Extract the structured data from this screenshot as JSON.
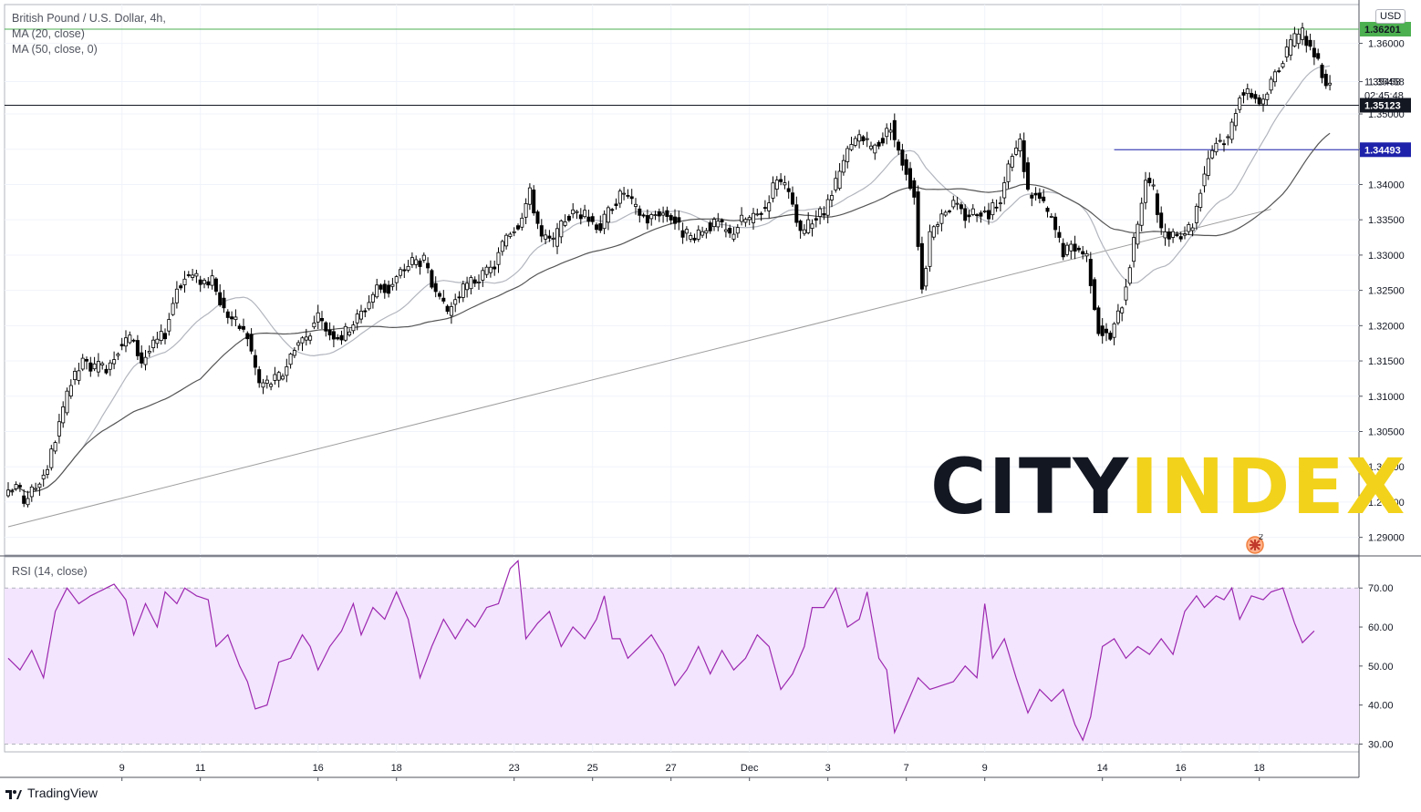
{
  "header": {
    "symbol_title": "British Pound / U.S. Dollar, 4h,",
    "ma20_label": "MA (20, close)",
    "ma50_label": "MA (50, close, 0)",
    "rsi_label": "RSI (14, close)",
    "currency": "USD"
  },
  "watermark": {
    "part1": "CITY",
    "part2": "INDEX",
    "color1": "#131722",
    "color2": "#f2d21b",
    "flag_count": "2"
  },
  "footer": {
    "brand": "TradingView"
  },
  "colors": {
    "up_candle": "#ffffff",
    "down_candle": "#000000",
    "ma20": "#b2b5be",
    "ma50": "#555555",
    "trendline": "#9e9e9e",
    "resistance": "#4caf50",
    "current_line": "#131722",
    "support_line": "#1e22aa",
    "rsi_line": "#9c27b0",
    "rsi_band": "#f3e5fd"
  },
  "chart_data": {
    "type": "candlestick",
    "ylim": [
      1.2875,
      1.3655
    ],
    "price_ticks": [
      "1.29000",
      "1.29500",
      "1.30000",
      "1.30500",
      "1.31000",
      "1.31500",
      "1.32000",
      "1.32500",
      "1.33000",
      "1.33500",
      "1.34000",
      "1.34500",
      "1.35000",
      "1.35458",
      "1.36000"
    ],
    "x_ticks": [
      "9",
      "11",
      "16",
      "18",
      "23",
      "25",
      "27",
      "Dec",
      "3",
      "7",
      "9",
      "14",
      "16",
      "18"
    ],
    "x_tick_index": [
      29,
      49,
      79,
      99,
      129,
      149,
      169,
      189,
      209,
      229,
      249,
      279,
      299,
      319
    ],
    "price_labels": [
      {
        "value": "1.36201",
        "price": 1.36201,
        "style": "resistance"
      },
      {
        "value": "1.35458",
        "price": 1.35458,
        "style": "last"
      },
      {
        "value": "02:45:48",
        "price": 1.35265,
        "style": "timer"
      },
      {
        "value": "1.35123",
        "price": 1.35123,
        "style": "current"
      },
      {
        "value": "1.34493",
        "price": 1.34493,
        "style": "support"
      }
    ],
    "lines": {
      "resistance": 1.36201,
      "current": 1.35123,
      "support": {
        "price": 1.34493,
        "from_index": 282
      },
      "trendline": {
        "from": [
          0,
          1.2915
        ],
        "to": [
          322,
          1.3365
        ]
      }
    },
    "anchors": [
      [
        0,
        1.296
      ],
      [
        2,
        1.2975
      ],
      [
        4,
        1.2952
      ],
      [
        7,
        1.2972
      ],
      [
        10,
        1.3
      ],
      [
        13,
        1.306
      ],
      [
        16,
        1.3118
      ],
      [
        19,
        1.3148
      ],
      [
        22,
        1.314
      ],
      [
        25,
        1.3142
      ],
      [
        28,
        1.3168
      ],
      [
        31,
        1.3185
      ],
      [
        34,
        1.315
      ],
      [
        37,
        1.3172
      ],
      [
        40,
        1.319
      ],
      [
        43,
        1.3255
      ],
      [
        46,
        1.3272
      ],
      [
        49,
        1.3265
      ],
      [
        52,
        1.3262
      ],
      [
        55,
        1.3222
      ],
      [
        58,
        1.3205
      ],
      [
        61,
        1.3185
      ],
      [
        64,
        1.3118
      ],
      [
        67,
        1.312
      ],
      [
        70,
        1.3132
      ],
      [
        73,
        1.3172
      ],
      [
        76,
        1.3185
      ],
      [
        79,
        1.321
      ],
      [
        82,
        1.319
      ],
      [
        85,
        1.3185
      ],
      [
        88,
        1.3205
      ],
      [
        91,
        1.3225
      ],
      [
        94,
        1.3255
      ],
      [
        97,
        1.325
      ],
      [
        100,
        1.3275
      ],
      [
        103,
        1.3292
      ],
      [
        106,
        1.3292
      ],
      [
        109,
        1.324
      ],
      [
        112,
        1.322
      ],
      [
        115,
        1.3245
      ],
      [
        118,
        1.3262
      ],
      [
        121,
        1.327
      ],
      [
        124,
        1.3285
      ],
      [
        127,
        1.333
      ],
      [
        130,
        1.3345
      ],
      [
        133,
        1.3388
      ],
      [
        136,
        1.3325
      ],
      [
        139,
        1.3318
      ],
      [
        142,
        1.3352
      ],
      [
        145,
        1.3362
      ],
      [
        148,
        1.3352
      ],
      [
        151,
        1.334
      ],
      [
        154,
        1.3372
      ],
      [
        157,
        1.339
      ],
      [
        160,
        1.3365
      ],
      [
        163,
        1.335
      ],
      [
        166,
        1.3362
      ],
      [
        169,
        1.3355
      ],
      [
        172,
        1.3332
      ],
      [
        175,
        1.332
      ],
      [
        178,
        1.334
      ],
      [
        181,
        1.3345
      ],
      [
        184,
        1.3328
      ],
      [
        187,
        1.335
      ],
      [
        190,
        1.3352
      ],
      [
        193,
        1.3368
      ],
      [
        196,
        1.3412
      ],
      [
        199,
        1.3385
      ],
      [
        202,
        1.3328
      ],
      [
        205,
        1.335
      ],
      [
        208,
        1.336
      ],
      [
        211,
        1.34
      ],
      [
        214,
        1.3445
      ],
      [
        217,
        1.347
      ],
      [
        220,
        1.345
      ],
      [
        223,
        1.3465
      ],
      [
        225,
        1.3485
      ],
      [
        227,
        1.3445
      ],
      [
        229,
        1.342
      ],
      [
        231,
        1.3385
      ],
      [
        233,
        1.3252
      ],
      [
        235,
        1.3325
      ],
      [
        238,
        1.3362
      ],
      [
        241,
        1.3372
      ],
      [
        244,
        1.3355
      ],
      [
        247,
        1.3365
      ],
      [
        250,
        1.3358
      ],
      [
        253,
        1.3382
      ],
      [
        256,
        1.344
      ],
      [
        258,
        1.346
      ],
      [
        260,
        1.339
      ],
      [
        263,
        1.338
      ],
      [
        266,
        1.335
      ],
      [
        269,
        1.3305
      ],
      [
        272,
        1.3312
      ],
      [
        275,
        1.33
      ],
      [
        278,
        1.3195
      ],
      [
        281,
        1.3182
      ],
      [
        284,
        1.3232
      ],
      [
        287,
        1.3318
      ],
      [
        290,
        1.3408
      ],
      [
        292,
        1.3392
      ],
      [
        294,
        1.333
      ],
      [
        297,
        1.3325
      ],
      [
        300,
        1.3335
      ],
      [
        302,
        1.3345
      ],
      [
        304,
        1.3395
      ],
      [
        306,
        1.344
      ],
      [
        308,
        1.3462
      ],
      [
        311,
        1.3465
      ],
      [
        314,
        1.353
      ],
      [
        317,
        1.3528
      ],
      [
        320,
        1.3515
      ],
      [
        323,
        1.356
      ],
      [
        326,
        1.3588
      ],
      [
        328,
        1.3605
      ],
      [
        330,
        1.3615
      ],
      [
        332,
        1.3595
      ],
      [
        334,
        1.357
      ],
      [
        336,
        1.3545
      ],
      [
        337,
        1.3545
      ]
    ],
    "rsi": {
      "ylim": [
        28,
        78
      ],
      "ticks": [
        "70.00",
        "60.00",
        "50.00",
        "40.00",
        "30.00"
      ],
      "overbought": 70,
      "oversold": 30,
      "anchors": [
        [
          0,
          52
        ],
        [
          3,
          49
        ],
        [
          6,
          54
        ],
        [
          9,
          47
        ],
        [
          12,
          64
        ],
        [
          15,
          70
        ],
        [
          18,
          66
        ],
        [
          21,
          68
        ],
        [
          25,
          70
        ],
        [
          27,
          71
        ],
        [
          30,
          67
        ],
        [
          32,
          58
        ],
        [
          35,
          66
        ],
        [
          38,
          60
        ],
        [
          40,
          69
        ],
        [
          43,
          66
        ],
        [
          45,
          70
        ],
        [
          48,
          68
        ],
        [
          51,
          67
        ],
        [
          53,
          55
        ],
        [
          56,
          58
        ],
        [
          59,
          50
        ],
        [
          61,
          46
        ],
        [
          63,
          39
        ],
        [
          66,
          40
        ],
        [
          69,
          51
        ],
        [
          72,
          52
        ],
        [
          75,
          58
        ],
        [
          77,
          55
        ],
        [
          79,
          49
        ],
        [
          82,
          55
        ],
        [
          85,
          59
        ],
        [
          88,
          66
        ],
        [
          90,
          58
        ],
        [
          93,
          65
        ],
        [
          96,
          62
        ],
        [
          99,
          69
        ],
        [
          102,
          62
        ],
        [
          105,
          47
        ],
        [
          108,
          55
        ],
        [
          111,
          62
        ],
        [
          114,
          57
        ],
        [
          117,
          62
        ],
        [
          119,
          60
        ],
        [
          122,
          65
        ],
        [
          125,
          66
        ],
        [
          128,
          75
        ],
        [
          130,
          77
        ],
        [
          132,
          57
        ],
        [
          135,
          61
        ],
        [
          138,
          64
        ],
        [
          141,
          55
        ],
        [
          144,
          60
        ],
        [
          147,
          57
        ],
        [
          150,
          62
        ],
        [
          152,
          68
        ],
        [
          154,
          57
        ],
        [
          156,
          57
        ],
        [
          158,
          52
        ],
        [
          161,
          55
        ],
        [
          164,
          58
        ],
        [
          167,
          53
        ],
        [
          170,
          45
        ],
        [
          173,
          49
        ],
        [
          176,
          55
        ],
        [
          179,
          48
        ],
        [
          182,
          54
        ],
        [
          185,
          49
        ],
        [
          188,
          52
        ],
        [
          191,
          58
        ],
        [
          194,
          55
        ],
        [
          197,
          44
        ],
        [
          200,
          48
        ],
        [
          203,
          55
        ],
        [
          205,
          65
        ],
        [
          208,
          65
        ],
        [
          211,
          70
        ],
        [
          214,
          60
        ],
        [
          217,
          62
        ],
        [
          219,
          69
        ],
        [
          222,
          52
        ],
        [
          224,
          49
        ],
        [
          226,
          33
        ],
        [
          229,
          40
        ],
        [
          232,
          47
        ],
        [
          235,
          44
        ],
        [
          238,
          45
        ],
        [
          241,
          46
        ],
        [
          244,
          50
        ],
        [
          247,
          47
        ],
        [
          249,
          66
        ],
        [
          251,
          52
        ],
        [
          254,
          57
        ],
        [
          257,
          47
        ],
        [
          260,
          38
        ],
        [
          263,
          44
        ],
        [
          266,
          41
        ],
        [
          269,
          44
        ],
        [
          272,
          35
        ],
        [
          274,
          31
        ],
        [
          276,
          37
        ],
        [
          279,
          55
        ],
        [
          282,
          57
        ],
        [
          285,
          52
        ],
        [
          288,
          55
        ],
        [
          291,
          53
        ],
        [
          294,
          57
        ],
        [
          297,
          53
        ],
        [
          300,
          64
        ],
        [
          303,
          68
        ],
        [
          305,
          65
        ],
        [
          308,
          68
        ],
        [
          310,
          67
        ],
        [
          312,
          70
        ],
        [
          314,
          62
        ],
        [
          317,
          68
        ],
        [
          320,
          67
        ],
        [
          322,
          69
        ],
        [
          325,
          70
        ],
        [
          328,
          61
        ],
        [
          330,
          56
        ],
        [
          333,
          59
        ]
      ]
    }
  }
}
